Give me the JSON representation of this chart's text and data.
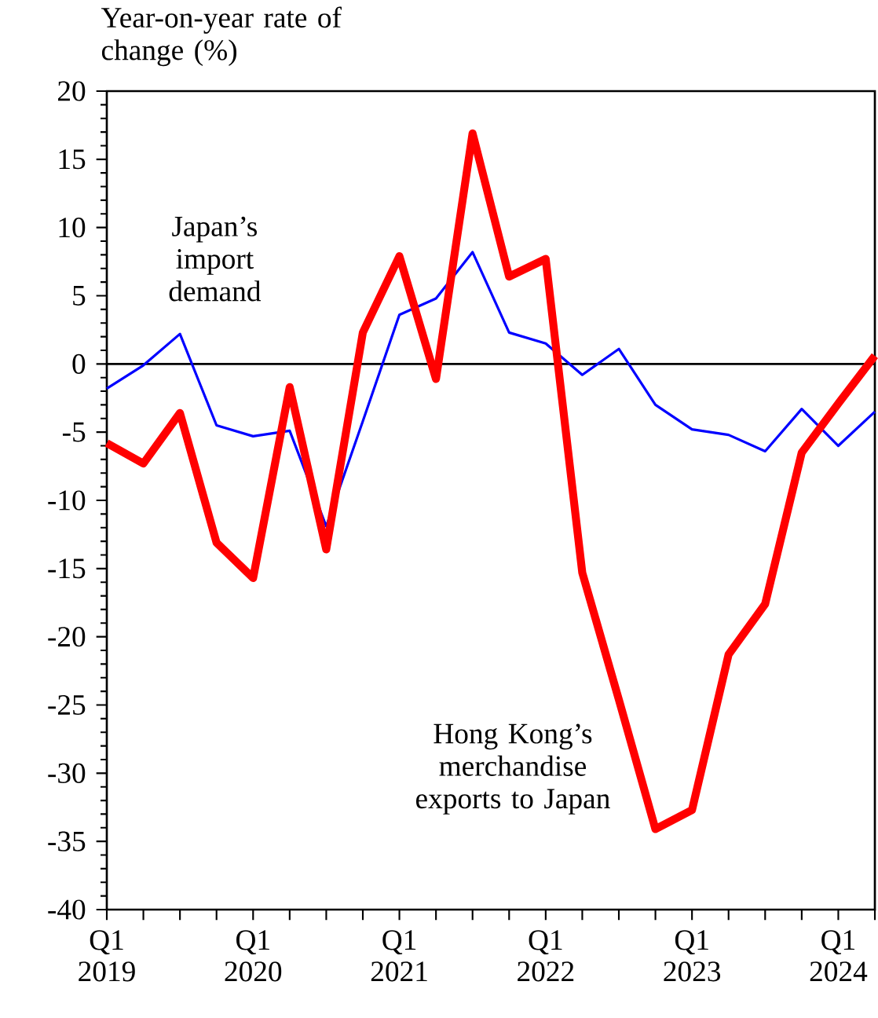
{
  "chart_data": {
    "type": "line",
    "ylabel": "Year-on-year rate of change (%)",
    "categories": [
      "Q1 2019",
      null,
      null,
      null,
      "Q1 2020",
      null,
      null,
      null,
      "Q1 2021",
      null,
      null,
      null,
      "Q1 2022",
      null,
      null,
      null,
      "Q1 2023",
      null,
      null,
      null,
      "Q1 2024",
      null
    ],
    "series": [
      {
        "color": "#0000ff",
        "values": [
          -1.8,
          -0.1,
          2.2,
          -4.5,
          -5.3,
          -4.9,
          -11.9,
          -4.2,
          3.6,
          4.8,
          8.2,
          2.3,
          1.5,
          -0.8,
          1.1,
          -3.0,
          -4.8,
          -5.2,
          -6.4,
          -3.3,
          -6.0,
          -3.5
        ]
      },
      {
        "color": "#ff0000",
        "values": [
          -5.8,
          -7.3,
          -3.6,
          -13.1,
          -15.7,
          -1.7,
          -13.6,
          2.3,
          7.9,
          -1.1,
          16.9,
          6.4,
          7.7,
          -15.3,
          -24.6,
          -34.1,
          -32.7,
          -21.3,
          -17.6,
          -6.5,
          -2.9,
          0.6
        ]
      }
    ],
    "annotations": [
      "Japan’s import demand",
      "Hong Kong’s merchandise exports to Japan"
    ],
    "ylim": [
      -40,
      20
    ],
    "yticks": [
      -40,
      -35,
      -30,
      -25,
      -20,
      -15,
      -10,
      -5,
      0,
      5,
      10,
      15,
      20
    ],
    "ref_lines": [
      {
        "axis": "y",
        "value": 0,
        "color": "#000000"
      }
    ]
  }
}
